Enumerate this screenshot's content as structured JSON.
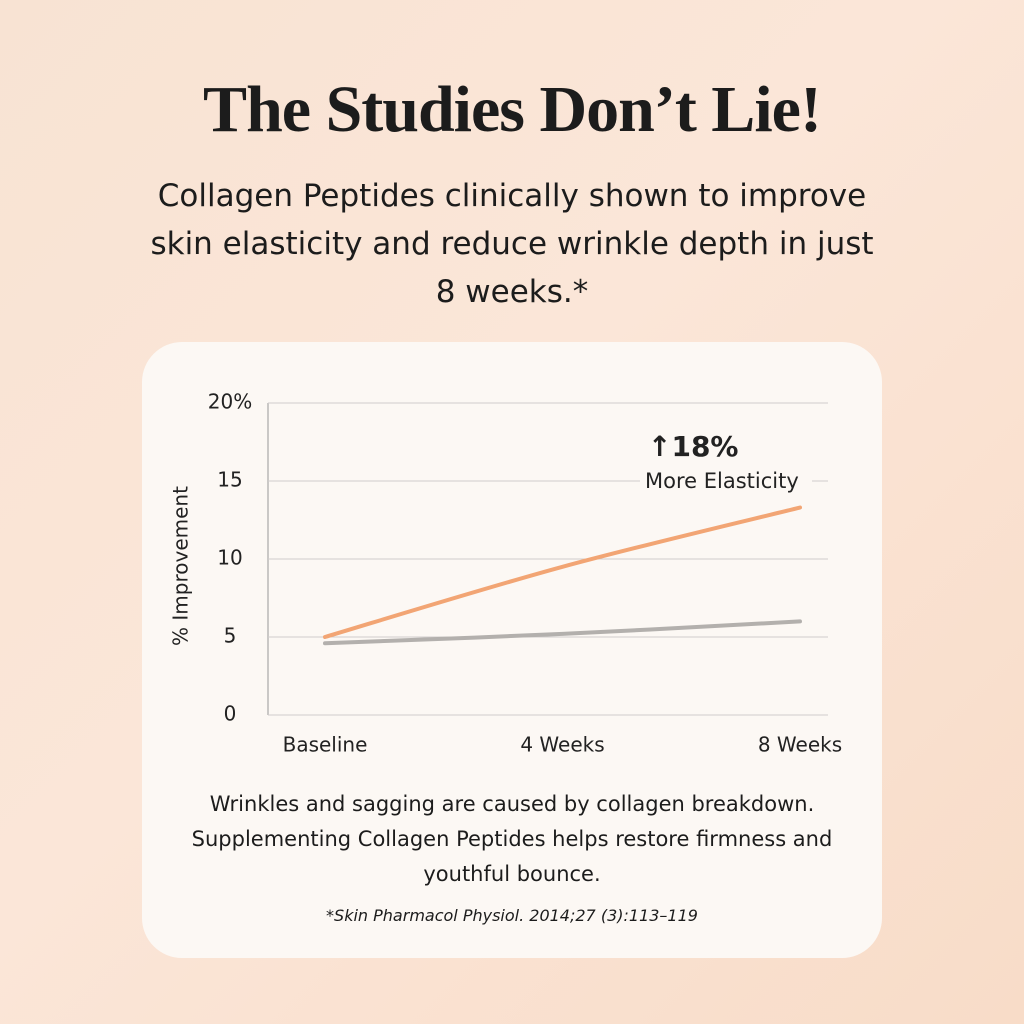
{
  "chart_data": {
    "type": "line",
    "title": "The Studies Don’t Lie!",
    "subtitle": "Collagen Peptides clinically shown to improve skin elasticity and reduce wrinkle depth in just 8 weeks.*",
    "y_label": "% Improvement",
    "categories": [
      "Baseline",
      "4 Weeks",
      "8 Weeks"
    ],
    "series": [
      {
        "color": "#f2a574",
        "values": [
          5,
          9.5,
          13.3
        ]
      },
      {
        "color": "#b3b0ad",
        "values": [
          4.6,
          5.2,
          6.0
        ]
      }
    ],
    "ylim": [
      0,
      20
    ],
    "yticks": [
      0,
      5,
      10,
      15,
      {
        "value": 20,
        "label": "20%"
      }
    ],
    "grid": true,
    "annotations": [
      "↑18%",
      "More Elasticity"
    ],
    "caption": "Wrinkles and sagging are caused by collagen breakdown. Supplementing Collagen Peptides helps restore firmness and youthful bounce.",
    "footnote": "*Skin Pharmacol Physiol. 2014;27 (3):113–119"
  }
}
